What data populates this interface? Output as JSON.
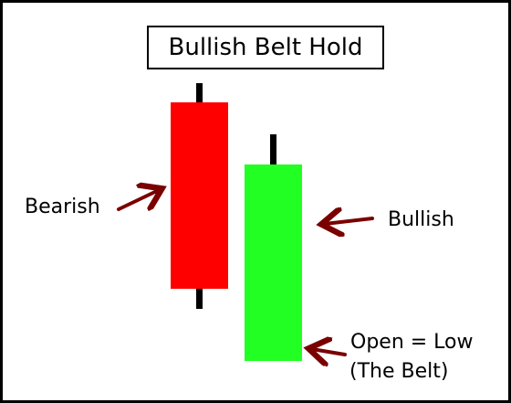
{
  "title": "Bullish Belt Hold",
  "labels": {
    "bearish": "Bearish",
    "bullish": "Bullish",
    "open_low": "Open = Low",
    "the_belt": "(The Belt)"
  },
  "colors": {
    "bearish_candle": "#ff0000",
    "bullish_candle": "#22ff22",
    "arrow": "#7a0000",
    "wick": "#000000"
  }
}
